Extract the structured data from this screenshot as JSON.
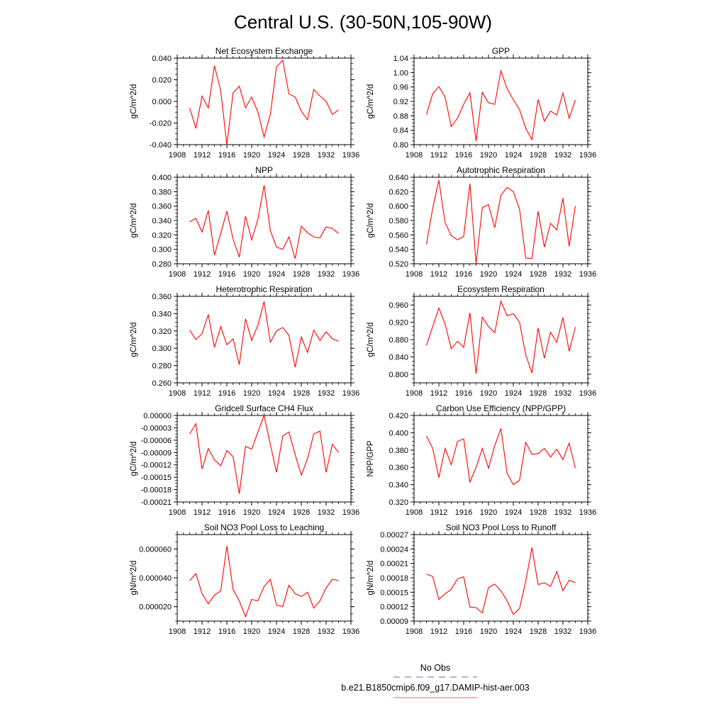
{
  "figure": {
    "title": "Central U.S. (30-50N,105-90W)",
    "legend": [
      {
        "label": "No Obs",
        "color": "#6666cc",
        "dashed": true
      },
      {
        "label": "b.e21.B1850cmip6.f09_g17.DAMIP-hist-aer.003",
        "color": "#e06666",
        "dashed": false
      }
    ]
  },
  "chart_data": [
    {
      "type": "line",
      "title": "Net Ecosystem Exchange",
      "xlabel": "",
      "ylabel": "gC/m^2/d",
      "xlim": [
        1908,
        1936
      ],
      "ylim": [
        -0.04,
        0.04
      ],
      "xticks": [
        "1908",
        "1912",
        "1916",
        "1920",
        "1924",
        "1928",
        "1932",
        "1936"
      ],
      "yticks": [
        "-0.040",
        "-0.020",
        "0.000",
        "0.020",
        "0.040"
      ],
      "line_color": "#ff0000",
      "x": [
        1910,
        1911,
        1912,
        1913,
        1914,
        1915,
        1916,
        1917,
        1918,
        1919,
        1920,
        1921,
        1922,
        1923,
        1924,
        1925,
        1926,
        1927,
        1928,
        1929,
        1930,
        1931,
        1932,
        1933,
        1934
      ],
      "values": [
        -0.006,
        -0.025,
        0.005,
        -0.006,
        0.033,
        0.01,
        -0.04,
        0.008,
        0.014,
        -0.006,
        0.004,
        -0.01,
        -0.033,
        -0.012,
        0.032,
        0.038,
        0.007,
        0.004,
        -0.009,
        -0.017,
        0.011,
        0.005,
        0.0,
        -0.012,
        -0.008
      ]
    },
    {
      "type": "line",
      "title": "GPP",
      "xlabel": "",
      "ylabel": "gC/m^2/d",
      "xlim": [
        1908,
        1936
      ],
      "ylim": [
        0.8,
        1.04
      ],
      "xticks": [
        "1908",
        "1912",
        "1916",
        "1920",
        "1924",
        "1928",
        "1932",
        "1936"
      ],
      "yticks": [
        "0.80",
        "0.84",
        "0.88",
        "0.92",
        "0.96",
        "1.00",
        "1.04"
      ],
      "line_color": "#ff0000",
      "x": [
        1910,
        1911,
        1912,
        1913,
        1914,
        1915,
        1916,
        1917,
        1918,
        1919,
        1920,
        1921,
        1922,
        1923,
        1924,
        1925,
        1926,
        1927,
        1928,
        1929,
        1930,
        1931,
        1932,
        1933,
        1934
      ],
      "values": [
        0.884,
        0.941,
        0.961,
        0.932,
        0.85,
        0.873,
        0.912,
        0.944,
        0.81,
        0.945,
        0.916,
        0.912,
        1.005,
        0.955,
        0.925,
        0.897,
        0.846,
        0.814,
        0.925,
        0.865,
        0.893,
        0.882,
        0.943,
        0.873,
        0.924
      ]
    },
    {
      "type": "line",
      "title": "NPP",
      "xlabel": "",
      "ylabel": "gC/m^2/d",
      "xlim": [
        1908,
        1936
      ],
      "ylim": [
        0.28,
        0.4
      ],
      "xticks": [
        "1908",
        "1912",
        "1916",
        "1920",
        "1924",
        "1928",
        "1932",
        "1936"
      ],
      "yticks": [
        "0.280",
        "0.300",
        "0.320",
        "0.340",
        "0.360",
        "0.380",
        "0.400"
      ],
      "line_color": "#ff0000",
      "x": [
        1910,
        1911,
        1912,
        1913,
        1914,
        1915,
        1916,
        1917,
        1918,
        1919,
        1920,
        1921,
        1922,
        1923,
        1924,
        1925,
        1926,
        1927,
        1928,
        1929,
        1930,
        1931,
        1932,
        1933,
        1934
      ],
      "values": [
        0.338,
        0.343,
        0.324,
        0.354,
        0.292,
        0.322,
        0.353,
        0.314,
        0.289,
        0.346,
        0.313,
        0.342,
        0.389,
        0.326,
        0.303,
        0.3,
        0.317,
        0.287,
        0.332,
        0.323,
        0.317,
        0.316,
        0.331,
        0.329,
        0.322
      ]
    },
    {
      "type": "line",
      "title": "Autotrophic Respiration",
      "xlabel": "",
      "ylabel": "gC/m^2/d",
      "xlim": [
        1908,
        1936
      ],
      "ylim": [
        0.52,
        0.64
      ],
      "xticks": [
        "1908",
        "1912",
        "1916",
        "1920",
        "1924",
        "1928",
        "1932",
        "1936"
      ],
      "yticks": [
        "0.520",
        "0.540",
        "0.560",
        "0.580",
        "0.600",
        "0.620",
        "0.640"
      ],
      "line_color": "#ff0000",
      "x": [
        1910,
        1911,
        1912,
        1913,
        1914,
        1915,
        1916,
        1917,
        1918,
        1919,
        1920,
        1921,
        1922,
        1923,
        1924,
        1925,
        1926,
        1927,
        1928,
        1929,
        1930,
        1931,
        1932,
        1933,
        1934
      ],
      "values": [
        0.547,
        0.597,
        0.636,
        0.577,
        0.559,
        0.553,
        0.558,
        0.631,
        0.52,
        0.598,
        0.602,
        0.57,
        0.615,
        0.626,
        0.62,
        0.596,
        0.528,
        0.527,
        0.593,
        0.543,
        0.576,
        0.567,
        0.611,
        0.544,
        0.6
      ]
    },
    {
      "type": "line",
      "title": "Heterotrophic Respiration",
      "xlabel": "",
      "ylabel": "gC/m^2/d",
      "xlim": [
        1908,
        1936
      ],
      "ylim": [
        0.26,
        0.36
      ],
      "xticks": [
        "1908",
        "1912",
        "1916",
        "1920",
        "1924",
        "1928",
        "1932",
        "1936"
      ],
      "yticks": [
        "0.260",
        "0.280",
        "0.300",
        "0.320",
        "0.340",
        "0.360"
      ],
      "line_color": "#ff0000",
      "x": [
        1910,
        1911,
        1912,
        1913,
        1914,
        1915,
        1916,
        1917,
        1918,
        1919,
        1920,
        1921,
        1922,
        1923,
        1924,
        1925,
        1926,
        1927,
        1928,
        1929,
        1930,
        1931,
        1932,
        1933,
        1934
      ],
      "values": [
        0.321,
        0.31,
        0.317,
        0.339,
        0.301,
        0.325,
        0.304,
        0.311,
        0.281,
        0.334,
        0.309,
        0.327,
        0.354,
        0.307,
        0.32,
        0.324,
        0.315,
        0.278,
        0.313,
        0.295,
        0.321,
        0.309,
        0.319,
        0.311,
        0.308
      ]
    },
    {
      "type": "line",
      "title": "Ecosystem Respiration",
      "xlabel": "",
      "ylabel": "gC/m^2/d",
      "xlim": [
        1908,
        1936
      ],
      "ylim": [
        0.78,
        0.98
      ],
      "xticks": [
        "1908",
        "1912",
        "1916",
        "1920",
        "1924",
        "1928",
        "1932",
        "1936"
      ],
      "yticks": [
        "0.800",
        "0.840",
        "0.880",
        "0.920",
        "0.960"
      ],
      "line_color": "#ff0000",
      "x": [
        1910,
        1911,
        1912,
        1913,
        1914,
        1915,
        1916,
        1917,
        1918,
        1919,
        1920,
        1921,
        1922,
        1923,
        1924,
        1925,
        1926,
        1927,
        1928,
        1929,
        1930,
        1931,
        1932,
        1933,
        1934
      ],
      "values": [
        0.867,
        0.91,
        0.953,
        0.916,
        0.859,
        0.876,
        0.862,
        0.942,
        0.801,
        0.932,
        0.91,
        0.896,
        0.969,
        0.935,
        0.94,
        0.92,
        0.845,
        0.803,
        0.907,
        0.837,
        0.897,
        0.874,
        0.931,
        0.853,
        0.909
      ]
    },
    {
      "type": "line",
      "title": "Gridcell Surface CH4 Flux",
      "xlabel": "",
      "ylabel": "gC/m^2/d",
      "xlim": [
        1908,
        1936
      ],
      "ylim": [
        -0.00021,
        0.0
      ],
      "xticks": [
        "1908",
        "1912",
        "1916",
        "1920",
        "1924",
        "1928",
        "1932",
        "1936"
      ],
      "yticks": [
        "-0.00021",
        "-0.00018",
        "-0.00015",
        "-0.00012",
        "-0.00009",
        "-0.00006",
        "-0.00003",
        "0.00000"
      ],
      "line_color": "#ff0000",
      "x": [
        1910,
        1911,
        1912,
        1913,
        1914,
        1915,
        1916,
        1917,
        1918,
        1919,
        1920,
        1921,
        1922,
        1923,
        1924,
        1925,
        1926,
        1927,
        1928,
        1929,
        1930,
        1931,
        1932,
        1933,
        1934
      ],
      "values": [
        -4.5e-05,
        -2e-05,
        -0.00013,
        -8e-05,
        -0.000108,
        -0.000122,
        -8.5e-05,
        -0.0001,
        -0.00019,
        -7.5e-05,
        -8.2e-05,
        -4e-05,
        0.0,
        -7e-05,
        -0.000138,
        -5e-05,
        -4e-05,
        -9.5e-05,
        -0.000145,
        -0.000105,
        -4.5e-05,
        -3.8e-05,
        -0.000138,
        -7e-05,
        -9e-05
      ]
    },
    {
      "type": "line",
      "title": "Carbon Use Efficiency (NPP/GPP)",
      "xlabel": "",
      "ylabel": "NPP/GPP",
      "xlim": [
        1908,
        1936
      ],
      "ylim": [
        0.32,
        0.42
      ],
      "xticks": [
        "1908",
        "1912",
        "1916",
        "1920",
        "1924",
        "1928",
        "1932",
        "1936"
      ],
      "yticks": [
        "0.320",
        "0.340",
        "0.360",
        "0.380",
        "0.400",
        "0.420"
      ],
      "line_color": "#ff0000",
      "x": [
        1910,
        1911,
        1912,
        1913,
        1914,
        1915,
        1916,
        1917,
        1918,
        1919,
        1920,
        1921,
        1922,
        1923,
        1924,
        1925,
        1926,
        1927,
        1928,
        1929,
        1930,
        1931,
        1932,
        1933,
        1934
      ],
      "values": [
        0.396,
        0.382,
        0.348,
        0.382,
        0.363,
        0.39,
        0.393,
        0.343,
        0.36,
        0.382,
        0.359,
        0.385,
        0.405,
        0.353,
        0.34,
        0.345,
        0.389,
        0.375,
        0.376,
        0.382,
        0.372,
        0.381,
        0.369,
        0.388,
        0.359
      ]
    },
    {
      "type": "line",
      "title": "Soil NO3 Pool Loss to Leaching",
      "xlabel": "",
      "ylabel": "gN/m^2/d",
      "xlim": [
        1908,
        1936
      ],
      "ylim": [
        1e-05,
        7e-05
      ],
      "xticks": [
        "1908",
        "1912",
        "1916",
        "1920",
        "1924",
        "1928",
        "1932",
        "1936"
      ],
      "yticks": [
        "0.000020",
        "0.000040",
        "0.000060"
      ],
      "line_color": "#ff0000",
      "x": [
        1910,
        1911,
        1912,
        1913,
        1914,
        1915,
        1916,
        1917,
        1918,
        1919,
        1920,
        1921,
        1922,
        1923,
        1924,
        1925,
        1926,
        1927,
        1928,
        1929,
        1930,
        1931,
        1932,
        1933,
        1934
      ],
      "values": [
        3.8e-05,
        4.3e-05,
        2.9e-05,
        2.2e-05,
        2.8e-05,
        3.1e-05,
        6.2e-05,
        3.2e-05,
        2.4e-05,
        1.3e-05,
        2.5e-05,
        2.4e-05,
        3.4e-05,
        3.9e-05,
        2.1e-05,
        2e-05,
        3.5e-05,
        2.9e-05,
        2.7e-05,
        3e-05,
        1.9e-05,
        2.4e-05,
        3.3e-05,
        3.9e-05,
        3.8e-05
      ]
    },
    {
      "type": "line",
      "title": "Soil NO3 Pool Loss to Runoff",
      "xlabel": "",
      "ylabel": "gN/m^2/d",
      "xlim": [
        1908,
        1936
      ],
      "ylim": [
        9e-05,
        0.00027
      ],
      "xticks": [
        "1908",
        "1912",
        "1916",
        "1920",
        "1924",
        "1928",
        "1932",
        "1936"
      ],
      "yticks": [
        "0.00009",
        "0.00012",
        "0.00015",
        "0.00018",
        "0.00021",
        "0.00024",
        "0.00027"
      ],
      "line_color": "#ff0000",
      "x": [
        1910,
        1911,
        1912,
        1913,
        1914,
        1915,
        1916,
        1917,
        1918,
        1919,
        1920,
        1921,
        1922,
        1923,
        1924,
        1925,
        1926,
        1927,
        1928,
        1929,
        1930,
        1931,
        1932,
        1933,
        1934
      ],
      "values": [
        0.000188,
        0.000183,
        0.000135,
        0.000147,
        0.000156,
        0.000178,
        0.000182,
        0.000119,
        0.000118,
        0.000107,
        0.00016,
        0.000167,
        0.000153,
        0.000132,
        0.000104,
        0.000116,
        0.000173,
        0.000243,
        0.000166,
        0.00017,
        0.000162,
        0.000193,
        0.000153,
        0.000175,
        0.00017
      ]
    }
  ]
}
